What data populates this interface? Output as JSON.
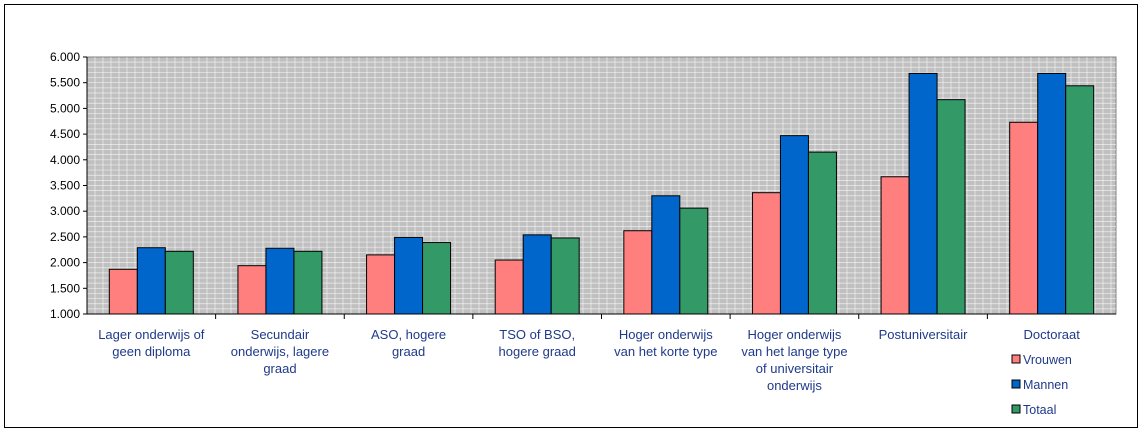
{
  "chart_data": {
    "type": "bar",
    "categories": [
      [
        "Lager onderwijs of",
        "geen diploma"
      ],
      [
        "Secundair",
        "onderwijs, lagere",
        "graad"
      ],
      [
        "ASO, hogere",
        "graad"
      ],
      [
        "TSO of BSO,",
        "hogere graad"
      ],
      [
        "Hoger onderwijs",
        "van het korte type"
      ],
      [
        "Hoger onderwijs",
        "van het lange type",
        "of universitair",
        "onderwijs"
      ],
      [
        "Postuniversitair"
      ],
      [
        "Doctoraat"
      ]
    ],
    "series": [
      {
        "name": "Vrouwen",
        "color": "#ff7f7f",
        "values": [
          1870,
          1940,
          2150,
          2050,
          2620,
          3360,
          3670,
          4730
        ]
      },
      {
        "name": "Mannen",
        "color": "#0066cc",
        "values": [
          2290,
          2280,
          2490,
          2540,
          3300,
          4470,
          5680,
          5680
        ]
      },
      {
        "name": "Totaal",
        "color": "#339966",
        "values": [
          2220,
          2220,
          2390,
          2480,
          3060,
          4150,
          5170,
          5440
        ]
      }
    ],
    "ylim": [
      1000,
      6000
    ],
    "yticks": [
      "1.000",
      "1.500",
      "2.000",
      "2.500",
      "3.000",
      "3.500",
      "4.000",
      "4.500",
      "5.000",
      "5.500",
      "6.000"
    ],
    "grid": true,
    "plot_background": "#c0c0c0",
    "legend_position": "bottom-right"
  }
}
